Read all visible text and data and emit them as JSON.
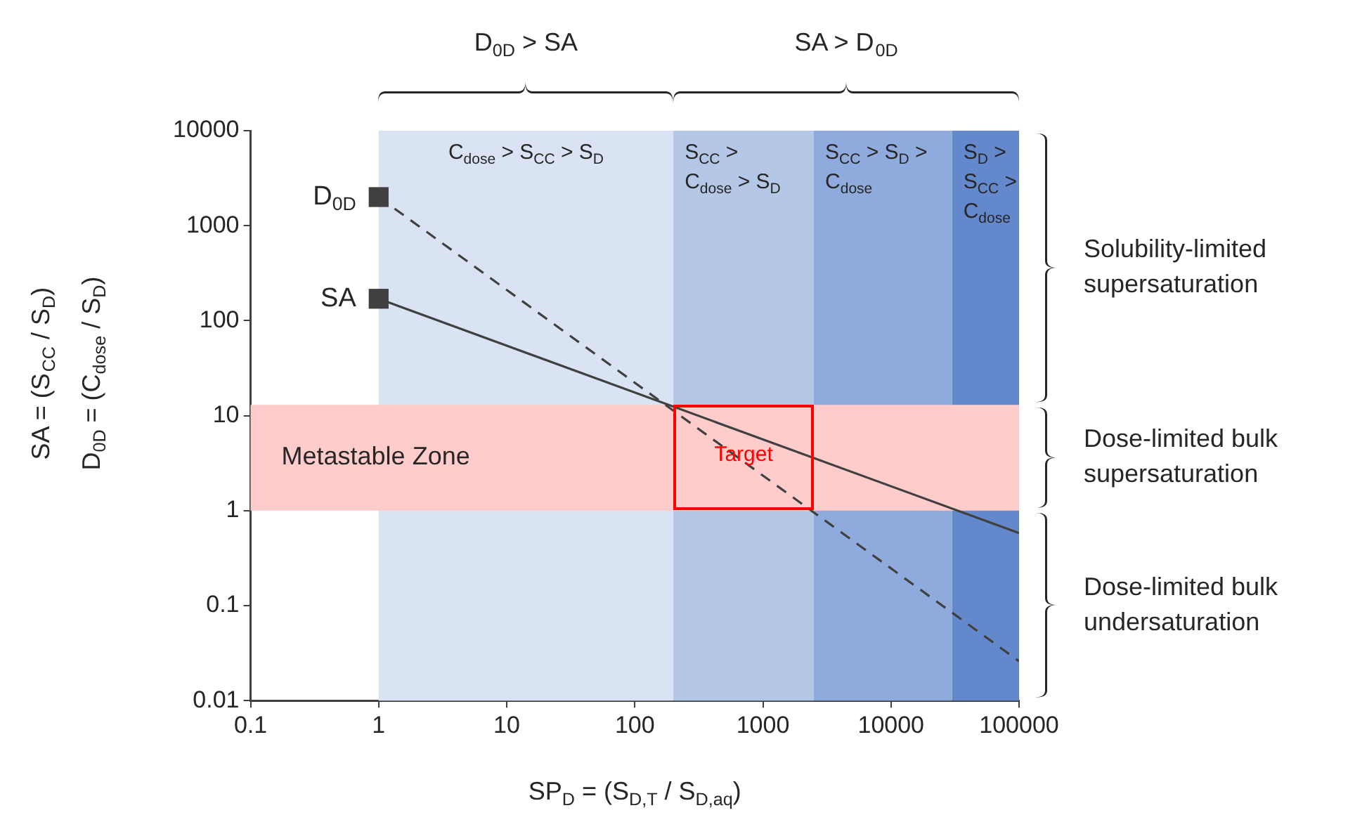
{
  "chart_data": {
    "type": "line",
    "xlabel": "SP$_{D}$ = (S$_{D,T}$ / S$_{D,aq}$)",
    "ylabel": "SA = (S$_{CC}$ / S$_{D}$)\nD$_{0D}$ = (C$_{dose}$ / S$_{D}$)",
    "x": [
      1,
      100000
    ],
    "series": [
      {
        "name": "D$_{0D}$",
        "color": "#404040",
        "values": [
          2000,
          0.026
        ],
        "line_style": "dashed"
      },
      {
        "name": "SA",
        "color": "#404040",
        "values": [
          170,
          0.58
        ],
        "line_style": "solid"
      }
    ],
    "log": "xy",
    "marker": "square",
    "xlim": [
      0.1,
      100000
    ],
    "ylim": [
      0.01,
      10000
    ],
    "xticks": [
      0.1,
      1,
      10,
      100,
      1000,
      10000,
      100000
    ],
    "yticks": [
      0.01,
      0.1,
      1,
      10,
      100,
      1000,
      10000
    ],
    "bands": [
      {
        "axis": "x",
        "from": 1,
        "to": 200,
        "label": "C$_{dose}$ > S$_{CC}$ > S$_{D}$",
        "color": "#dae3f3"
      },
      {
        "axis": "x",
        "from": 200,
        "to": 2500,
        "label": "S$_{CC}$ > C$_{dose}$ > S$_{D}$",
        "color": "#b4c7e7"
      },
      {
        "axis": "x",
        "from": 2500,
        "to": 30000,
        "label": "S$_{CC}$ > S$_{D}$ > C$_{dose}$",
        "color": "#8faadc"
      },
      {
        "axis": "x",
        "from": 30000,
        "to": 100000,
        "label": "S$_{D}$ > S$_{CC}$ > C$_{dose}$",
        "color": "#6488cc"
      },
      {
        "axis": "y",
        "from": 1,
        "to": 13,
        "label": "Metastable Zone",
        "color": "#ffcccc"
      }
    ],
    "annotations": [
      "D$_{0D}$ > SA",
      "SA > D$_{0D}$",
      "Solubility-limited supersaturation",
      "Dose-limited bulk supersaturation",
      "Dose-limited bulk undersaturation",
      "Target"
    ]
  }
}
